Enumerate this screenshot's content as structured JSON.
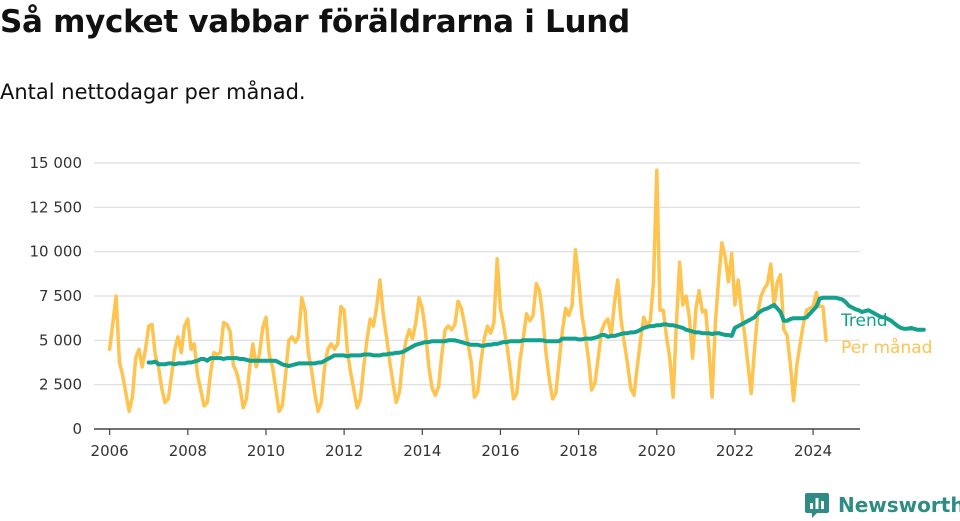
{
  "header": {
    "title": "Så mycket vabbar föräldrarna i Lund",
    "subtitle": "Antal nettodagar per månad."
  },
  "brand": {
    "name": "Newsworthy",
    "icon": "bar-chart-speech-bubble-icon"
  },
  "colors": {
    "monthly": "#ffc34f",
    "trend": "#13a08c",
    "grid": "#dddddd",
    "axis": "#444444",
    "brand": "#2f8c85"
  },
  "chart_data": {
    "type": "line",
    "title": "Så mycket vabbar föräldrarna i Lund",
    "subtitle": "Antal nettodagar per månad.",
    "xlabel": "",
    "ylabel": "",
    "xlim": [
      2005.6,
      2025.2
    ],
    "ylim": [
      0,
      15000
    ],
    "grid": "horizontal",
    "legend": "right, inline at line ends",
    "x_ticks": [
      2006,
      2008,
      2010,
      2012,
      2014,
      2016,
      2018,
      2020,
      2022,
      2024
    ],
    "x_tick_labels": [
      "2006",
      "2008",
      "2010",
      "2012",
      "2014",
      "2016",
      "2018",
      "2020",
      "2022",
      "2024"
    ],
    "y_ticks": [
      0,
      2500,
      5000,
      7500,
      10000,
      12500,
      15000
    ],
    "y_tick_labels": [
      "0",
      "2 500",
      "5 000",
      "7 500",
      "10 000",
      "12 500",
      "15 000"
    ],
    "series": [
      {
        "name": "Per månad",
        "color": "#ffc34f",
        "x_start": 2006.0,
        "x_step_months": 1,
        "values": [
          4500,
          6000,
          7500,
          3800,
          3000,
          2000,
          1000,
          1800,
          4000,
          4500,
          3500,
          4500,
          5800,
          5900,
          4200,
          3500,
          2300,
          1500,
          1700,
          3000,
          4500,
          5200,
          4300,
          5800,
          6200,
          4500,
          4800,
          3000,
          2200,
          1300,
          1500,
          3200,
          4300,
          4200,
          4300,
          6000,
          5900,
          5500,
          3600,
          3200,
          2400,
          1200,
          1700,
          3500,
          4800,
          3500,
          4200,
          5700,
          6300,
          4200,
          3500,
          2300,
          1000,
          1300,
          3000,
          5000,
          5200,
          4900,
          5200,
          7400,
          6700,
          4300,
          3300,
          2000,
          1000,
          1500,
          3500,
          4500,
          4800,
          4500,
          4800,
          6900,
          6700,
          4400,
          3200,
          2200,
          1200,
          1700,
          3500,
          5000,
          6200,
          5800,
          6900,
          8400,
          6500,
          5200,
          3800,
          2600,
          1500,
          2100,
          3900,
          5000,
          5600,
          5100,
          6000,
          7400,
          6800,
          5500,
          3500,
          2300,
          1900,
          2400,
          4200,
          5600,
          5800,
          5600,
          5900,
          7200,
          6800,
          5900,
          4800,
          3800,
          1800,
          2100,
          3800,
          5100,
          5800,
          5400,
          6000,
          9600,
          6800,
          5800,
          4700,
          3300,
          1700,
          2000,
          3900,
          5100,
          6500,
          6100,
          6400,
          8200,
          7800,
          6300,
          4300,
          2800,
          1700,
          2000,
          3800,
          5500,
          6800,
          6400,
          7000,
          10100,
          8500,
          6400,
          5300,
          4000,
          2200,
          2600,
          4000,
          5500,
          6000,
          6200,
          5300,
          7100,
          8400,
          6200,
          4900,
          3700,
          2300,
          1900,
          3500,
          5000,
          6300,
          5800,
          6100,
          8300,
          14600,
          6700,
          6700,
          5200,
          4000,
          1800,
          5800,
          9400,
          7000,
          7500,
          6300,
          4000,
          6800,
          7800,
          6600,
          6700,
          4500,
          1800,
          6000,
          8500,
          10500,
          9700,
          8300,
          9900,
          7000,
          8400,
          6600,
          5300,
          3600,
          2000,
          4500,
          6500,
          7500,
          7900,
          8200,
          9300,
          6900,
          8300,
          8700,
          5600,
          5300,
          3700,
          1600,
          3600,
          4800,
          5900,
          6700,
          6800,
          6900,
          7700,
          6900,
          6900,
          5000
        ]
      },
      {
        "name": "Trend",
        "color": "#13a08c",
        "x_start": 2007.0,
        "x_step_months": 1,
        "values": [
          3750,
          3750,
          3800,
          3650,
          3650,
          3650,
          3700,
          3700,
          3650,
          3700,
          3700,
          3700,
          3750,
          3750,
          3800,
          3850,
          3950,
          3950,
          3850,
          4000,
          4000,
          4000,
          4000,
          3950,
          4000,
          4000,
          4000,
          4000,
          3950,
          3950,
          3900,
          3850,
          3850,
          3850,
          3850,
          3850,
          3850,
          3850,
          3850,
          3850,
          3750,
          3650,
          3600,
          3550,
          3600,
          3650,
          3700,
          3700,
          3700,
          3700,
          3700,
          3700,
          3750,
          3750,
          3850,
          3950,
          4050,
          4150,
          4150,
          4150,
          4150,
          4100,
          4150,
          4150,
          4150,
          4150,
          4200,
          4200,
          4200,
          4150,
          4150,
          4150,
          4200,
          4200,
          4250,
          4250,
          4300,
          4300,
          4350,
          4450,
          4550,
          4650,
          4750,
          4800,
          4850,
          4900,
          4900,
          4950,
          4950,
          4950,
          4950,
          4950,
          5000,
          5000,
          5000,
          4950,
          4900,
          4850,
          4800,
          4750,
          4750,
          4750,
          4700,
          4700,
          4750,
          4750,
          4800,
          4800,
          4850,
          4900,
          4900,
          4950,
          4950,
          4950,
          4950,
          5000,
          5000,
          5000,
          5000,
          5000,
          5000,
          5000,
          4950,
          4950,
          4950,
          4950,
          4950,
          5100,
          5100,
          5100,
          5100,
          5100,
          5050,
          5050,
          5100,
          5100,
          5100,
          5150,
          5200,
          5300,
          5300,
          5200,
          5250,
          5250,
          5300,
          5350,
          5400,
          5400,
          5450,
          5450,
          5500,
          5600,
          5700,
          5750,
          5800,
          5800,
          5850,
          5850,
          5900,
          5900,
          5850,
          5850,
          5800,
          5750,
          5700,
          5600,
          5550,
          5500,
          5450,
          5450,
          5400,
          5400,
          5400,
          5350,
          5400,
          5400,
          5350,
          5300,
          5300,
          5250,
          5700,
          5800,
          5900,
          6000,
          6100,
          6200,
          6300,
          6500,
          6650,
          6750,
          6800,
          6900,
          7000,
          6800,
          6600,
          6100,
          6100,
          6200,
          6250,
          6250,
          6250,
          6250,
          6300,
          6500,
          6700,
          6900,
          7350,
          7400,
          7400,
          7400,
          7400,
          7400,
          7350,
          7300,
          7150,
          6950,
          6850,
          6750,
          6700,
          6600,
          6650,
          6700,
          6600,
          6500,
          6400,
          6300,
          6300,
          6200,
          6100,
          5950,
          5800,
          5700,
          5650,
          5650,
          5700,
          5650,
          5600,
          5600,
          5600
        ]
      }
    ]
  }
}
